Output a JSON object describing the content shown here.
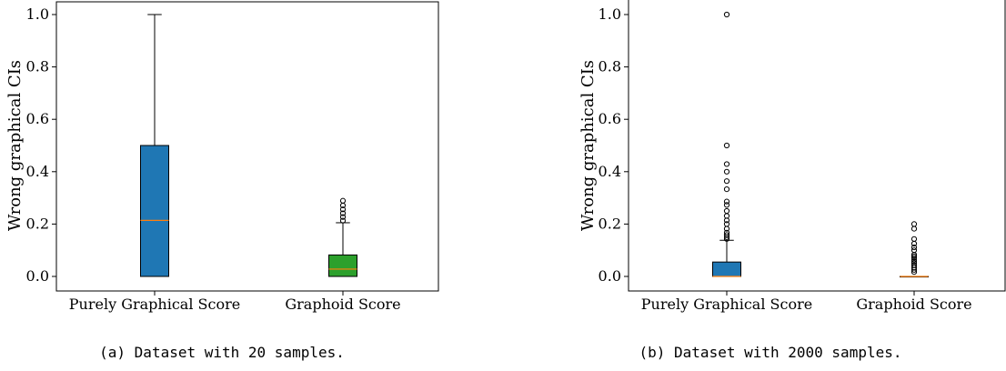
{
  "chart_data": [
    {
      "type": "box",
      "caption": "(a) Dataset with 20 samples.",
      "ylabel": "Wrong graphical CIs",
      "ylim": [
        -0.05,
        1.05
      ],
      "yticks": [
        "0.0",
        "0.2",
        "0.4",
        "0.6",
        "0.8",
        "1.0"
      ],
      "categories": [
        "Purely Graphical Score",
        "Graphoid Score"
      ],
      "boxes": [
        {
          "q1": 0.0,
          "median": 0.214,
          "q3": 0.5,
          "whisker_low": 0.0,
          "whisker_high": 1.0,
          "color": "#1f77b4",
          "outliers": []
        },
        {
          "q1": 0.0,
          "median": 0.028,
          "q3": 0.082,
          "whisker_low": 0.0,
          "whisker_high": 0.205,
          "color": "#2ca02c",
          "outliers": [
            0.213,
            0.227,
            0.241,
            0.256,
            0.271,
            0.289
          ]
        }
      ],
      "median_color": "#ff7f0e"
    },
    {
      "type": "box",
      "caption": "(b) Dataset with 2000 samples.",
      "ylabel": "Wrong graphical CIs",
      "ylim": [
        -0.05,
        1.05
      ],
      "yticks": [
        "0.0",
        "0.2",
        "0.4",
        "0.6",
        "0.8",
        "1.0"
      ],
      "categories": [
        "Purely Graphical Score",
        "Graphoid Score"
      ],
      "boxes": [
        {
          "q1": 0.0,
          "median": 0.0,
          "q3": 0.055,
          "whisker_low": 0.0,
          "whisker_high": 0.138,
          "color": "#1f77b4",
          "outliers": [
            0.143,
            0.15,
            0.158,
            0.167,
            0.182,
            0.2,
            0.214,
            0.231,
            0.25,
            0.273,
            0.286,
            0.333,
            0.364,
            0.4,
            0.429,
            0.5,
            1.0
          ]
        },
        {
          "q1": 0.0,
          "median": 0.0,
          "q3": 0.0,
          "whisker_low": 0.0,
          "whisker_high": 0.0,
          "color": "#1f77b4",
          "outliers": [
            0.017,
            0.025,
            0.033,
            0.042,
            0.05,
            0.056,
            0.063,
            0.071,
            0.077,
            0.083,
            0.1,
            0.111,
            0.125,
            0.143,
            0.182,
            0.2
          ]
        }
      ],
      "median_color": "#ff7f0e"
    }
  ]
}
